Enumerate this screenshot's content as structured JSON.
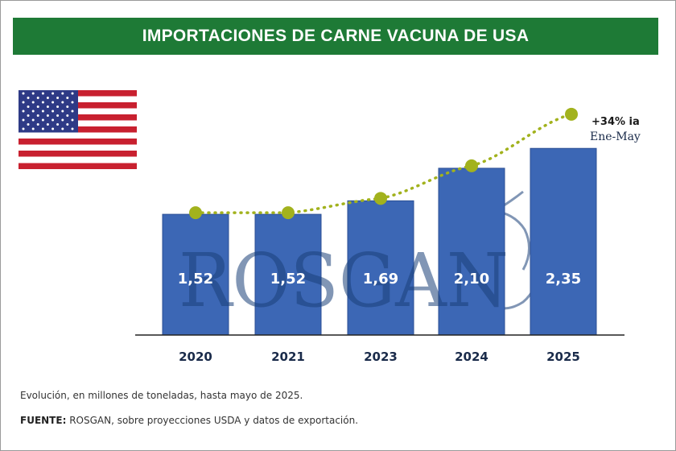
{
  "title": "IMPORTACIONES DE CARNE VACUNA DE USA",
  "watermark": "ROSGAN",
  "chart_data": {
    "type": "bar",
    "title": "IMPORTACIONES DE CARNE VACUNA DE USA",
    "categories": [
      "2020",
      "2021",
      "2023",
      "2024",
      "2025"
    ],
    "values": [
      1.52,
      1.52,
      1.69,
      2.1,
      2.35
    ],
    "value_labels": [
      "1,52",
      "1,52",
      "1,69",
      "2,10",
      "2,35"
    ],
    "trend_points": [
      1.52,
      1.52,
      1.69,
      2.1,
      2.78
    ],
    "ylim": [
      0,
      2.9
    ],
    "unit": "millones de toneladas",
    "annotation": {
      "line1": "+34% ia",
      "line2": "Ene-May"
    },
    "colors": {
      "bar": "#3c67b5",
      "trend": "#a2b21d",
      "axis": "#222222"
    }
  },
  "footer": {
    "note": "Evolución, en millones de toneladas, hasta mayo de 2025.",
    "source_label": "FUENTE:",
    "source_text": " ROSGAN, sobre proyecciones USDA y datos de exportación."
  }
}
